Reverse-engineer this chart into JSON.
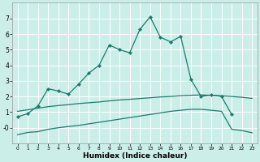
{
  "xlabel": "Humidex (Indice chaleur)",
  "background_color": "#cceee8",
  "grid_color": "#ffffff",
  "line_color": "#1a7a6e",
  "upper_x": [
    0,
    1,
    2,
    3,
    4,
    5,
    6,
    7,
    8,
    9,
    10,
    11,
    12,
    13,
    14,
    15,
    16,
    17,
    18,
    19,
    20,
    21
  ],
  "upper_y": [
    0.7,
    0.9,
    1.4,
    2.5,
    2.35,
    2.15,
    2.8,
    3.5,
    4.0,
    5.3,
    5.0,
    4.8,
    6.3,
    7.1,
    5.8,
    5.5,
    5.85,
    3.1,
    2.0,
    2.1,
    2.0,
    0.85
  ],
  "mid_x": [
    0,
    1,
    2,
    3,
    4,
    5,
    6,
    7,
    8,
    9,
    10,
    11,
    12,
    13,
    14,
    15,
    16,
    17,
    18,
    19,
    20,
    21,
    22,
    23
  ],
  "mid_y": [
    1.05,
    1.15,
    1.25,
    1.35,
    1.42,
    1.48,
    1.55,
    1.6,
    1.65,
    1.72,
    1.78,
    1.82,
    1.87,
    1.92,
    1.97,
    2.0,
    2.05,
    2.08,
    2.1,
    2.08,
    2.05,
    2.0,
    1.95,
    1.88
  ],
  "low_x": [
    0,
    1,
    2,
    3,
    4,
    5,
    6,
    7,
    8,
    9,
    10,
    11,
    12,
    13,
    14,
    15,
    16,
    17,
    18,
    19,
    20,
    21,
    22,
    23
  ],
  "low_y": [
    -0.45,
    -0.3,
    -0.25,
    -0.1,
    0.0,
    0.08,
    0.15,
    0.25,
    0.35,
    0.45,
    0.55,
    0.65,
    0.75,
    0.85,
    0.95,
    1.05,
    1.12,
    1.18,
    1.18,
    1.12,
    1.05,
    -0.1,
    -0.18,
    -0.32
  ],
  "ylim": [
    -1.0,
    8.0
  ],
  "xlim": [
    -0.5,
    23.5
  ],
  "yticks": [
    0,
    1,
    2,
    3,
    4,
    5,
    6,
    7
  ],
  "ytick_labels": [
    "-0",
    "1",
    "2",
    "3",
    "4",
    "5",
    "6",
    "7"
  ]
}
